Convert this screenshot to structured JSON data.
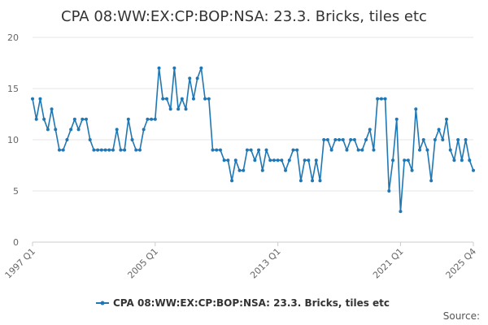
{
  "chart_data": {
    "type": "line",
    "title": "CPA 08:WW:EX:CP:BOP:NSA: 23.3. Bricks, tiles etc",
    "ylim": [
      0,
      20
    ],
    "yticks": [
      "0",
      "5",
      "10",
      "15",
      "20"
    ],
    "xticks": [
      "1997 Q1",
      "2005 Q1",
      "2013 Q1",
      "2021 Q1",
      "2025 Q4"
    ],
    "grid": true,
    "legend_position": "bottom",
    "source_label": "Source:",
    "series": [
      {
        "name": "CPA 08:WW:EX:CP:BOP:NSA: 23.3. Bricks, tiles etc",
        "color": "#1f77b4",
        "start": "1997 Q1",
        "end": "2025 Q4",
        "values": [
          14,
          12,
          14,
          12,
          11,
          13,
          11,
          9,
          9,
          10,
          11,
          12,
          11,
          12,
          12,
          10,
          9,
          9,
          9,
          9,
          9,
          9,
          11,
          9,
          9,
          12,
          10,
          9,
          9,
          11,
          12,
          12,
          12,
          17,
          14,
          14,
          13,
          17,
          13,
          14,
          13,
          16,
          14,
          16,
          17,
          14,
          14,
          9,
          9,
          9,
          8,
          8,
          6,
          8,
          7,
          7,
          9,
          9,
          8,
          9,
          7,
          9,
          8,
          8,
          8,
          8,
          7,
          8,
          9,
          9,
          6,
          8,
          8,
          6,
          8,
          6,
          10,
          10,
          9,
          10,
          10,
          10,
          9,
          10,
          10,
          9,
          9,
          10,
          11,
          9,
          14,
          14,
          14,
          5,
          8,
          12,
          3,
          8,
          8,
          7,
          13,
          9,
          10,
          9,
          6,
          10,
          11,
          10,
          12,
          9,
          8,
          10,
          8,
          10,
          8,
          7
        ]
      }
    ]
  }
}
